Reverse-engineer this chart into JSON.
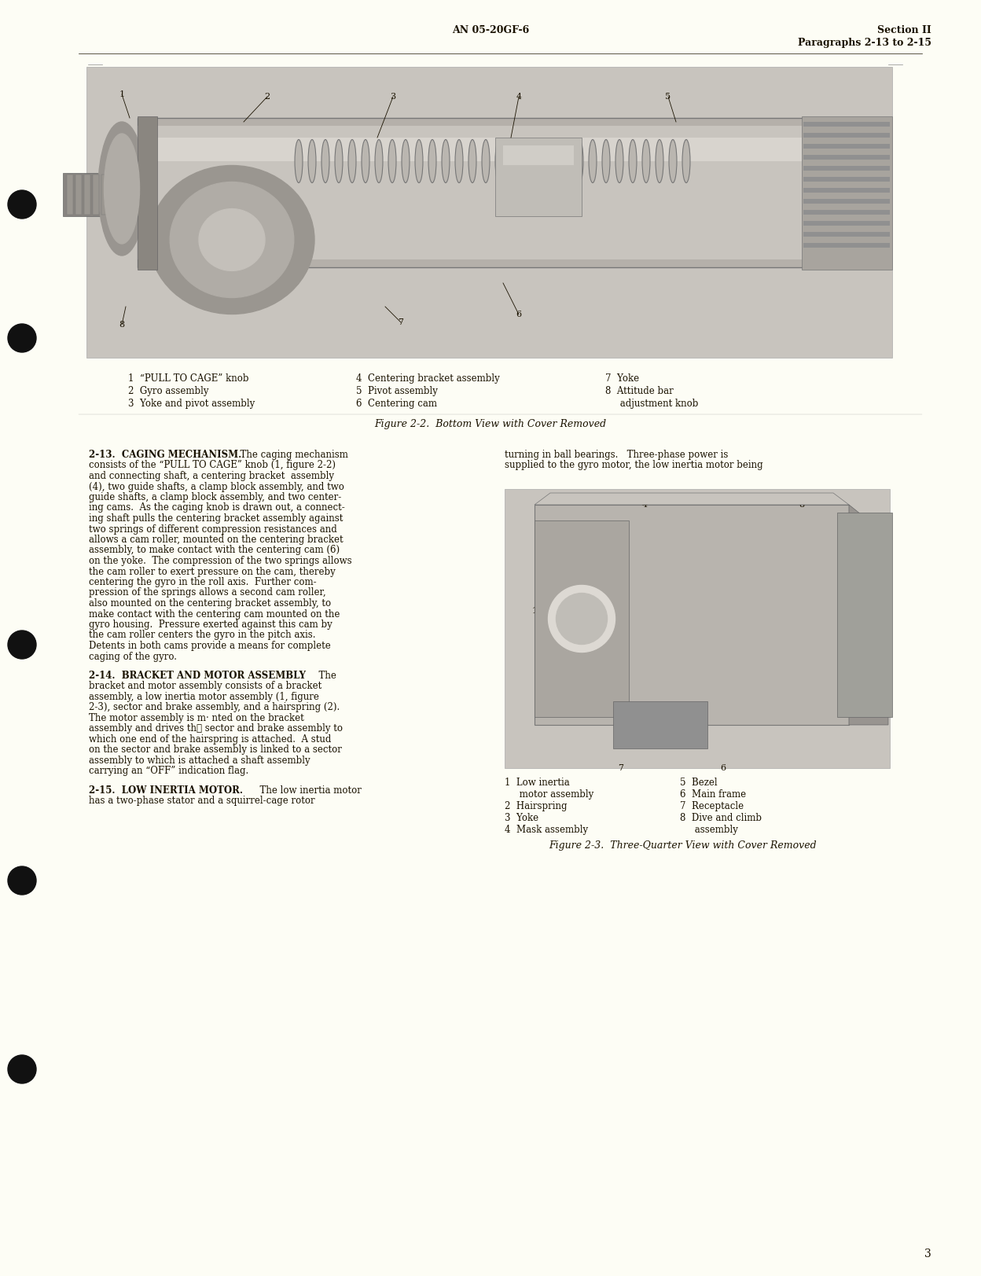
{
  "page_bg": "#FDFDF5",
  "text_color": "#1a1200",
  "header_center": "AN 05-20GF-6",
  "header_right_line1": "Section II",
  "header_right_line2": "Paragraphs 2-13 to 2-15",
  "page_number": "3",
  "fig1_caption": "Figure 2-2.  Bottom View with Cover Removed",
  "fig2_caption": "Figure 2-3.  Three-Quarter View with Cover Removed",
  "fig1_labels_left": [
    "1  “PULL TO CAGE” knob",
    "2  Gyro assembly",
    "3  Yoke and pivot assembly"
  ],
  "fig1_labels_mid": [
    "4  Centering bracket assembly",
    "5  Pivot assembly",
    "6  Centering cam"
  ],
  "fig1_labels_right": [
    "7  Yoke",
    "8  Attitude bar",
    "     adjustment knob"
  ],
  "fig2_labels_left": [
    "1  Low inertia",
    "     motor assembly",
    "2  Hairspring",
    "3  Yoke",
    "4  Mask assembly"
  ],
  "fig2_labels_right": [
    "5  Bezel",
    "6  Main frame",
    "7  Receptacle",
    "8  Dive and climb",
    "     assembly"
  ],
  "para_213_title": "2-13.  CAGING MECHANISM.",
  "para_213_body": "  The caging mechanism consists of the “PULL TO CAGE” knob (1, figure 2-2) and connecting shaft, a centering bracket assembly (4), two guide shafts, a clamp block assembly, and two guide shafts, a clamp block assembly, and two centering cams.  As the caging knob is drawn out, a connecting shaft pulls the centering bracket assembly against two springs of different compression resistances and allows a cam roller, mounted on the centering bracket assembly, to make contact with the centering cam (6) on the yoke.  The compression of the two springs allows the cam roller to exert pressure on the cam, thereby centering the gyro in the roll axis.  Further com-pression of the springs allows a second cam roller, also mounted on the centering bracket assembly, to make contact with the centering cam mounted on the gyro housing.  Pressure exerted against this cam by the cam roller centers the gyro in the pitch axis. Detents in both cams provide a means for complete caging of the gyro.",
  "para_214_title": "2-14.  BRACKET AND MOTOR ASSEMBLY",
  "para_214_body": "  The bracket and motor assembly consists of a bracket assembly, a low inertia motor assembly (1, figure 2-3), sector and brake assembly, and a hairspring (2). The motor assembly is m· nted on the bracket assembly and drives th‧ sector and brake assembly to which one end of the hairspring is attached.  A stud on the sector and brake assembly is linked to a sector assembly to which is attached a shaft assembly carrying an “OFF” indication flag.",
  "para_215_title": "2-15.  LOW INERTIA MOTOR.",
  "para_215_body_left": "  The low inertia motor has a two-phase stator and a squirrel-cage rotor",
  "para_215_body_right": "turning in ball bearings.   Three-phase power is supplied to the gyro motor, the low inertia motor being",
  "fig1_photo_color": "#c8c4be",
  "fig2_photo_color": "#c8c4be",
  "dot_color": "#111111",
  "line_color": "#888888"
}
